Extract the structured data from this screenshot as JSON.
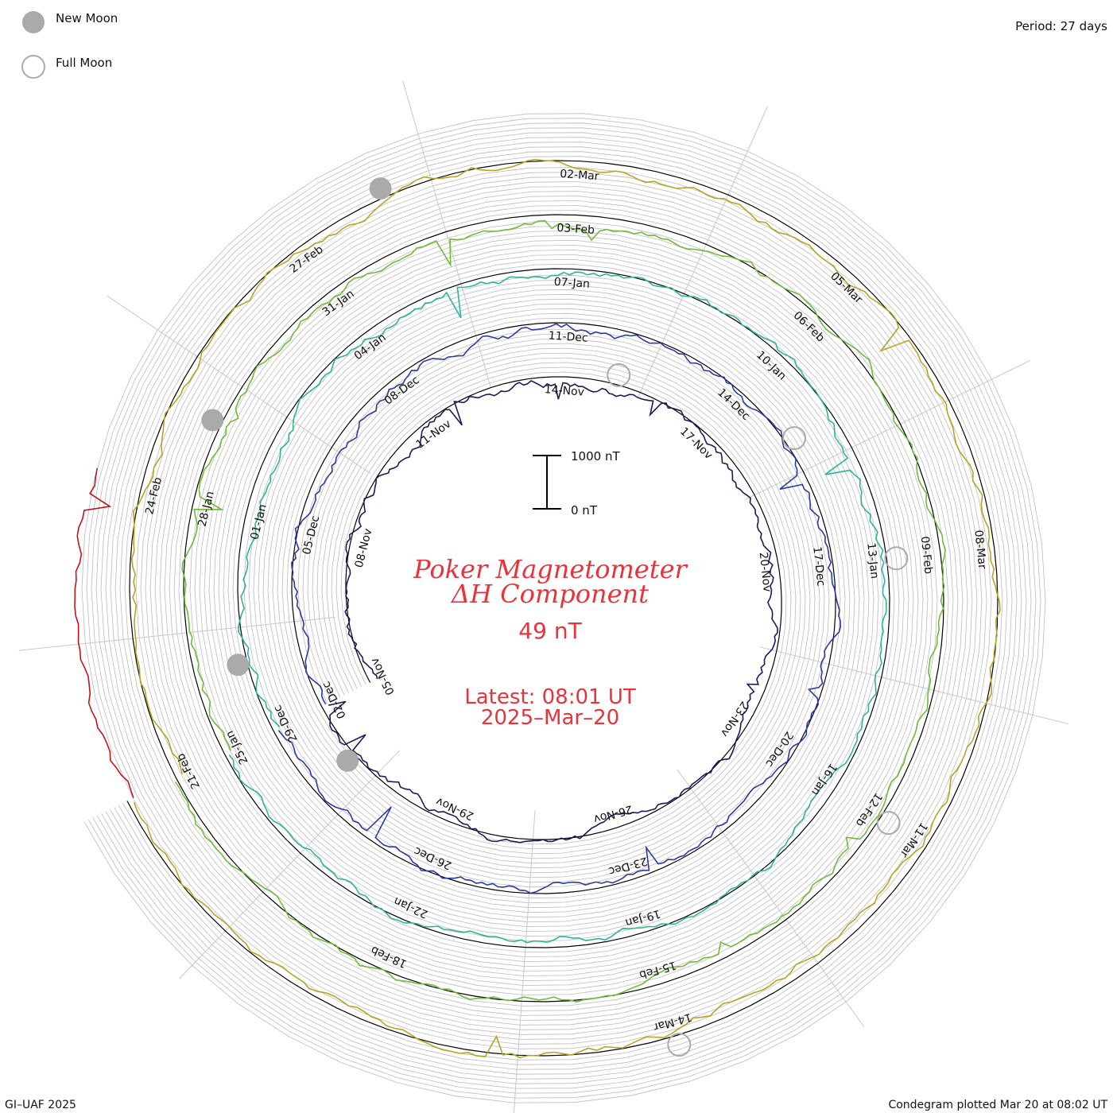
{
  "legend": {
    "new_moon_label": "New Moon",
    "full_moon_label": "Full Moon"
  },
  "period_label": "Period: 27 days",
  "title_line1": "Poker Magnetometer",
  "title_line2": "ΔH Component",
  "current_value": "49 nT",
  "latest_line1": "Latest: 08:01 UT",
  "latest_line2": "2025–Mar–20",
  "scale_bar": {
    "top_label": "1000 nT",
    "bottom_label": "0 nT"
  },
  "footer_left": "GI–UAF 2025",
  "footer_right": "Condegram plotted Mar 20 at 08:02 UT",
  "colors": {
    "title": "#e8333a",
    "moon_fill": "#aaaaaa",
    "grid": "#bbbbbb",
    "baseline": "#000000"
  },
  "chart_data": {
    "type": "line",
    "subtype": "condegram-spiral",
    "period_days": 27,
    "units": "nT",
    "scale_bar_nT": [
      0,
      1000
    ],
    "date_labels": [
      [
        "05-Nov",
        "08-Nov",
        "11-Nov",
        "14-Nov",
        "17-Nov",
        "20-Nov",
        "23-Nov",
        "26-Nov",
        "29-Nov"
      ],
      [
        "02-Dec",
        "05-Dec",
        "08-Dec",
        "11-Dec",
        "14-Dec",
        "17-Dec",
        "20-Dec",
        "23-Dec",
        "26-Dec"
      ],
      [
        "29-Dec",
        "01-Jan",
        "04-Jan",
        "07-Jan",
        "10-Jan",
        "13-Jan",
        "16-Jan",
        "19-Jan",
        "22-Jan"
      ],
      [
        "25-Jan",
        "28-Jan",
        "31-Jan",
        "03-Feb",
        "06-Feb",
        "09-Feb",
        "12-Feb",
        "15-Feb",
        "18-Feb"
      ],
      [
        "21-Feb",
        "24-Feb",
        "27-Feb",
        "02-Mar",
        "05-Mar",
        "08-Mar",
        "11-Mar",
        "14-Mar"
      ]
    ],
    "series": [
      {
        "color": "#1a1a5e",
        "range": [
          "2024-11-05",
          "2024-12-02"
        ]
      },
      {
        "color": "#2b3aa8",
        "range": [
          "2024-12-02",
          "2024-12-29"
        ]
      },
      {
        "color": "#2fb39a",
        "range": [
          "2024-12-29",
          "2025-01-25"
        ]
      },
      {
        "color": "#6fbb3a",
        "range": [
          "2025-01-25",
          "2025-02-21"
        ]
      },
      {
        "color": "#b8a424",
        "range": [
          "2025-02-21",
          "2025-03-20"
        ]
      },
      {
        "color": "#c0151a",
        "range": [
          "2025-03-20",
          "2025-03-20"
        ]
      }
    ],
    "new_moons": [
      "2024-12-01",
      "2024-12-30",
      "2025-01-29",
      "2025-02-28"
    ],
    "full_moons": [
      "2024-11-15",
      "2024-12-15",
      "2025-01-13",
      "2025-02-12",
      "2025-03-14"
    ],
    "grid": true
  }
}
